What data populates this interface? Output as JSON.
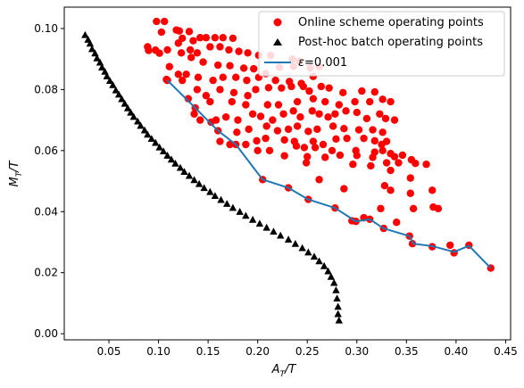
{
  "chart_data": {
    "type": "scatter",
    "xlabel_main": "A",
    "xlabel_sub": "T",
    "xlabel_tail": "/T",
    "ylabel_main": "M",
    "ylabel_sub": "T",
    "ylabel_tail": "/T",
    "xlim": [
      0.005,
      0.455
    ],
    "ylim": [
      -0.002,
      0.107
    ],
    "xticks": [
      0.05,
      0.1,
      0.15,
      0.2,
      0.25,
      0.3,
      0.35,
      0.4,
      0.45
    ],
    "xtick_labels": [
      "0.05",
      "0.10",
      "0.15",
      "0.20",
      "0.25",
      "0.30",
      "0.35",
      "0.40",
      "0.45"
    ],
    "yticks": [
      0.0,
      0.02,
      0.04,
      0.06,
      0.08,
      0.1
    ],
    "ytick_labels": [
      "0.00",
      "0.02",
      "0.04",
      "0.06",
      "0.08",
      "0.10"
    ],
    "legend_position": "top-right",
    "series": [
      {
        "name": "Online scheme operating points",
        "kind": "scatter",
        "marker": "circle",
        "color": "#ff0000",
        "points": [
          [
            0.098,
            0.1023
          ],
          [
            0.106,
            0.1023
          ],
          [
            0.118,
            0.0995
          ],
          [
            0.121,
            0.0992
          ],
          [
            0.131,
            0.099
          ],
          [
            0.089,
            0.094
          ],
          [
            0.09,
            0.0928
          ],
          [
            0.097,
            0.0929
          ],
          [
            0.101,
            0.0919
          ],
          [
            0.109,
            0.093
          ],
          [
            0.103,
            0.0988
          ],
          [
            0.124,
            0.0968
          ],
          [
            0.135,
            0.096
          ],
          [
            0.142,
            0.097
          ],
          [
            0.148,
            0.097
          ],
          [
            0.157,
            0.097
          ],
          [
            0.165,
            0.097
          ],
          [
            0.175,
            0.0968
          ],
          [
            0.12,
            0.0952
          ],
          [
            0.132,
            0.093
          ],
          [
            0.139,
            0.092
          ],
          [
            0.152,
            0.094
          ],
          [
            0.162,
            0.094
          ],
          [
            0.171,
            0.093
          ],
          [
            0.181,
            0.0925
          ],
          [
            0.19,
            0.092
          ],
          [
            0.201,
            0.0912
          ],
          [
            0.213,
            0.0912
          ],
          [
            0.235,
            0.09
          ],
          [
            0.242,
            0.0893
          ],
          [
            0.123,
            0.092
          ],
          [
            0.133,
            0.0905
          ],
          [
            0.145,
            0.089
          ],
          [
            0.16,
            0.088
          ],
          [
            0.172,
            0.0878
          ],
          [
            0.186,
            0.087
          ],
          [
            0.196,
            0.0868
          ],
          [
            0.208,
            0.0852
          ],
          [
            0.222,
            0.0873
          ],
          [
            0.236,
            0.0876
          ],
          [
            0.253,
            0.0871
          ],
          [
            0.262,
            0.0875
          ],
          [
            0.111,
            0.0875
          ],
          [
            0.12,
            0.085
          ],
          [
            0.128,
            0.085
          ],
          [
            0.14,
            0.084
          ],
          [
            0.155,
            0.083
          ],
          [
            0.165,
            0.084
          ],
          [
            0.178,
            0.084
          ],
          [
            0.189,
            0.083
          ],
          [
            0.201,
            0.084
          ],
          [
            0.218,
            0.083
          ],
          [
            0.232,
            0.0826
          ],
          [
            0.244,
            0.082
          ],
          [
            0.256,
            0.0843
          ],
          [
            0.108,
            0.0833
          ],
          [
            0.124,
            0.083
          ],
          [
            0.139,
            0.08
          ],
          [
            0.148,
            0.078
          ],
          [
            0.162,
            0.08
          ],
          [
            0.176,
            0.079
          ],
          [
            0.19,
            0.078
          ],
          [
            0.198,
            0.08
          ],
          [
            0.211,
            0.0806
          ],
          [
            0.224,
            0.0805
          ],
          [
            0.234,
            0.081
          ],
          [
            0.246,
            0.081
          ],
          [
            0.252,
            0.0795
          ],
          [
            0.264,
            0.081
          ],
          [
            0.272,
            0.0805
          ],
          [
            0.286,
            0.079
          ],
          [
            0.305,
            0.0795
          ],
          [
            0.318,
            0.0792
          ],
          [
            0.13,
            0.077
          ],
          [
            0.152,
            0.076
          ],
          [
            0.174,
            0.076
          ],
          [
            0.188,
            0.075
          ],
          [
            0.21,
            0.075
          ],
          [
            0.221,
            0.075
          ],
          [
            0.24,
            0.076
          ],
          [
            0.256,
            0.077
          ],
          [
            0.268,
            0.076
          ],
          [
            0.282,
            0.075
          ],
          [
            0.298,
            0.076
          ],
          [
            0.313,
            0.076
          ],
          [
            0.326,
            0.0768
          ],
          [
            0.334,
            0.076
          ],
          [
            0.136,
            0.072
          ],
          [
            0.142,
            0.07
          ],
          [
            0.158,
            0.07
          ],
          [
            0.168,
            0.071
          ],
          [
            0.18,
            0.07
          ],
          [
            0.195,
            0.072
          ],
          [
            0.203,
            0.0712
          ],
          [
            0.215,
            0.07
          ],
          [
            0.226,
            0.072
          ],
          [
            0.236,
            0.073
          ],
          [
            0.243,
            0.071
          ],
          [
            0.255,
            0.073
          ],
          [
            0.262,
            0.072
          ],
          [
            0.271,
            0.071
          ],
          [
            0.278,
            0.072
          ],
          [
            0.289,
            0.073
          ],
          [
            0.3,
            0.0725
          ],
          [
            0.31,
            0.0705
          ],
          [
            0.323,
            0.072
          ],
          [
            0.329,
            0.0705
          ],
          [
            0.338,
            0.07
          ],
          [
            0.153,
            0.0693
          ],
          [
            0.179,
            0.066
          ],
          [
            0.191,
            0.067
          ],
          [
            0.209,
            0.068
          ],
          [
            0.22,
            0.0665
          ],
          [
            0.231,
            0.067
          ],
          [
            0.24,
            0.068
          ],
          [
            0.251,
            0.0663
          ],
          [
            0.26,
            0.067
          ],
          [
            0.276,
            0.068
          ],
          [
            0.287,
            0.0672
          ],
          [
            0.302,
            0.0668
          ],
          [
            0.316,
            0.0668
          ],
          [
            0.326,
            0.066
          ],
          [
            0.162,
            0.063
          ],
          [
            0.188,
            0.062
          ],
          [
            0.199,
            0.0632
          ],
          [
            0.208,
            0.064
          ],
          [
            0.227,
            0.0635
          ],
          [
            0.237,
            0.063
          ],
          [
            0.256,
            0.063
          ],
          [
            0.266,
            0.062
          ],
          [
            0.279,
            0.0638
          ],
          [
            0.29,
            0.064
          ],
          [
            0.307,
            0.064
          ],
          [
            0.318,
            0.0632
          ],
          [
            0.325,
            0.062
          ],
          [
            0.33,
            0.063
          ],
          [
            0.172,
            0.062
          ],
          [
            0.2,
            0.06
          ],
          [
            0.212,
            0.06
          ],
          [
            0.239,
            0.0615
          ],
          [
            0.247,
            0.061
          ],
          [
            0.258,
            0.061
          ],
          [
            0.275,
            0.06
          ],
          [
            0.299,
            0.06
          ],
          [
            0.318,
            0.0595
          ],
          [
            0.326,
            0.06
          ],
          [
            0.334,
            0.059
          ],
          [
            0.227,
            0.0583
          ],
          [
            0.25,
            0.058
          ],
          [
            0.268,
            0.0578
          ],
          [
            0.283,
            0.0585
          ],
          [
            0.3,
            0.0584
          ],
          [
            0.316,
            0.0578
          ],
          [
            0.338,
            0.058
          ],
          [
            0.346,
            0.0585
          ],
          [
            0.355,
            0.057
          ],
          [
            0.249,
            0.056
          ],
          [
            0.296,
            0.0555
          ],
          [
            0.314,
            0.055
          ],
          [
            0.33,
            0.056
          ],
          [
            0.342,
            0.056
          ],
          [
            0.359,
            0.0558
          ],
          [
            0.37,
            0.0555
          ],
          [
            0.334,
            0.0535
          ],
          [
            0.354,
            0.051
          ],
          [
            0.262,
            0.0505
          ],
          [
            0.287,
            0.0475
          ],
          [
            0.328,
            0.0485
          ],
          [
            0.334,
            0.047
          ],
          [
            0.354,
            0.046
          ],
          [
            0.376,
            0.047
          ],
          [
            0.324,
            0.041
          ],
          [
            0.357,
            0.041
          ],
          [
            0.377,
            0.0415
          ],
          [
            0.382,
            0.041
          ],
          [
            0.307,
            0.038
          ],
          [
            0.34,
            0.0365
          ],
          [
            0.295,
            0.037
          ],
          [
            0.356,
            0.0295
          ],
          [
            0.394,
            0.029
          ],
          [
            0.376,
            0.0285
          ],
          [
            0.413,
            0.029
          ],
          [
            0.398,
            0.0265
          ],
          [
            0.435,
            0.0215
          ],
          [
            0.109,
            0.083
          ],
          [
            0.137,
            0.074
          ],
          [
            0.16,
            0.0665
          ],
          [
            0.178,
            0.062
          ],
          [
            0.205,
            0.0505
          ],
          [
            0.231,
            0.0478
          ],
          [
            0.251,
            0.044
          ],
          [
            0.278,
            0.0412
          ],
          [
            0.299,
            0.0368
          ],
          [
            0.313,
            0.0375
          ],
          [
            0.327,
            0.0345
          ],
          [
            0.353,
            0.032
          ]
        ]
      },
      {
        "name": "Post-hoc batch operating points",
        "kind": "scatter",
        "marker": "triangle",
        "color": "#000000",
        "points": [
          [
            0.026,
            0.0978
          ],
          [
            0.029,
            0.0963
          ],
          [
            0.031,
            0.095
          ],
          [
            0.033,
            0.0932
          ],
          [
            0.036,
            0.0918
          ],
          [
            0.038,
            0.0902
          ],
          [
            0.041,
            0.0888
          ],
          [
            0.043,
            0.0872
          ],
          [
            0.046,
            0.0858
          ],
          [
            0.048,
            0.0843
          ],
          [
            0.051,
            0.0828
          ],
          [
            0.054,
            0.0814
          ],
          [
            0.057,
            0.0797
          ],
          [
            0.06,
            0.0783
          ],
          [
            0.063,
            0.0768
          ],
          [
            0.066,
            0.0753
          ],
          [
            0.069,
            0.0738
          ],
          [
            0.072,
            0.0724
          ],
          [
            0.075,
            0.071
          ],
          [
            0.079,
            0.0695
          ],
          [
            0.082,
            0.0681
          ],
          [
            0.086,
            0.0666
          ],
          [
            0.089,
            0.0652
          ],
          [
            0.093,
            0.0638
          ],
          [
            0.097,
            0.0625
          ],
          [
            0.101,
            0.061
          ],
          [
            0.105,
            0.0597
          ],
          [
            0.109,
            0.0583
          ],
          [
            0.113,
            0.057
          ],
          [
            0.117,
            0.0557
          ],
          [
            0.122,
            0.0543
          ],
          [
            0.126,
            0.053
          ],
          [
            0.131,
            0.0517
          ],
          [
            0.136,
            0.0503
          ],
          [
            0.141,
            0.049
          ],
          [
            0.146,
            0.0477
          ],
          [
            0.152,
            0.0464
          ],
          [
            0.157,
            0.0451
          ],
          [
            0.163,
            0.0438
          ],
          [
            0.169,
            0.0425
          ],
          [
            0.175,
            0.0412
          ],
          [
            0.182,
            0.0399
          ],
          [
            0.188,
            0.0386
          ],
          [
            0.195,
            0.0373
          ],
          [
            0.202,
            0.036
          ],
          [
            0.209,
            0.0347
          ],
          [
            0.216,
            0.0334
          ],
          [
            0.223,
            0.0321
          ],
          [
            0.231,
            0.0308
          ],
          [
            0.238,
            0.0294
          ],
          [
            0.245,
            0.028
          ],
          [
            0.251,
            0.0266
          ],
          [
            0.257,
            0.0252
          ],
          [
            0.262,
            0.0237
          ],
          [
            0.267,
            0.0221
          ],
          [
            0.271,
            0.0204
          ],
          [
            0.274,
            0.0186
          ],
          [
            0.277,
            0.0166
          ],
          [
            0.279,
            0.0142
          ],
          [
            0.28,
            0.0115
          ],
          [
            0.281,
            0.0088
          ],
          [
            0.281,
            0.0064
          ],
          [
            0.282,
            0.0043
          ]
        ]
      },
      {
        "name": "ε=0.001",
        "kind": "line",
        "color": "#1f77b4",
        "points": [
          [
            0.109,
            0.083
          ],
          [
            0.137,
            0.074
          ],
          [
            0.16,
            0.0665
          ],
          [
            0.178,
            0.062
          ],
          [
            0.205,
            0.0505
          ],
          [
            0.231,
            0.0478
          ],
          [
            0.251,
            0.044
          ],
          [
            0.278,
            0.0412
          ],
          [
            0.299,
            0.0368
          ],
          [
            0.313,
            0.0375
          ],
          [
            0.327,
            0.0345
          ],
          [
            0.353,
            0.032
          ],
          [
            0.357,
            0.0295
          ],
          [
            0.376,
            0.0287
          ],
          [
            0.398,
            0.0268
          ],
          [
            0.413,
            0.0288
          ],
          [
            0.435,
            0.0215
          ]
        ]
      }
    ]
  },
  "legend": {
    "items": [
      {
        "label": "Online scheme operating points",
        "marker": "circle",
        "color": "#ff0000"
      },
      {
        "label": "Post-hoc batch operating points",
        "marker": "triangle",
        "color": "#000000"
      },
      {
        "label_prefix": "ε",
        "label_suffix": "=0.001",
        "marker": "line",
        "color": "#1f77b4"
      }
    ]
  }
}
